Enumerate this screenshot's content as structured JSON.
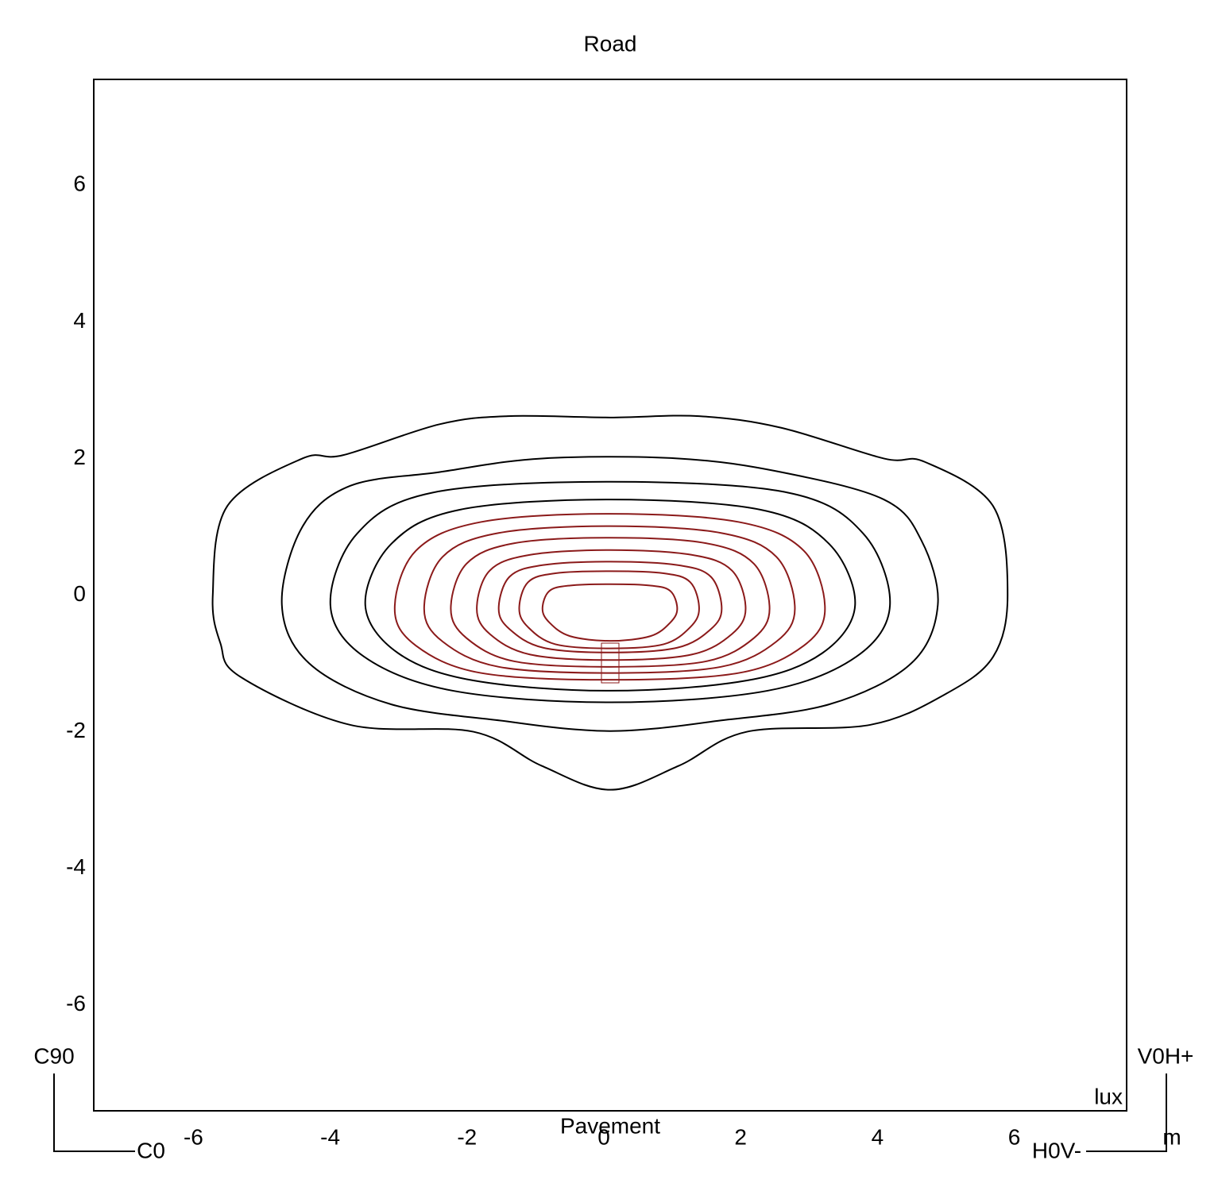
{
  "chart_data": {
    "type": "contour",
    "title": "Road",
    "xlabel": "Pavement",
    "unit_label": "lux",
    "length_unit": "m",
    "annotations": {
      "c90": "C90",
      "c0": "C0",
      "v0h": "V0H+",
      "h0v": "H0V-"
    },
    "xlim": [
      -7.55,
      7.55
    ],
    "ylim": [
      -7.55,
      7.55
    ],
    "xticks": [
      -6,
      -4,
      -2,
      0,
      2,
      4,
      6
    ],
    "yticks": [
      -6,
      -4,
      -2,
      0,
      2,
      4,
      6
    ],
    "grid": false,
    "contours": [
      {
        "color": "#000000",
        "x": [
          -5.81,
          -5.6,
          -4.5,
          -3.9,
          -2.5,
          -1.5,
          0,
          1.3,
          2.5,
          4,
          4.6,
          5.6,
          5.81,
          5.6,
          4.9,
          3.8,
          2.0,
          1.0,
          0,
          -1,
          -2.0,
          -3.8,
          -5.4,
          -5.7
        ],
        "y": [
          0,
          1.3,
          2.0,
          2.05,
          2.5,
          2.62,
          2.6,
          2.62,
          2.45,
          2.0,
          1.95,
          1.3,
          0,
          -0.9,
          -1.45,
          -1.9,
          -2.0,
          -2.5,
          -2.85,
          -2.5,
          -2.0,
          -1.9,
          -1.2,
          -0.7
        ]
      },
      {
        "color": "#000000",
        "x": [
          -4.8,
          -4.5,
          -3.8,
          -2.5,
          -1,
          1,
          2.5,
          4.0,
          4.55,
          4.79,
          4.4,
          3.2,
          1.5,
          0.7,
          0,
          -0.7,
          -1.5,
          -3.2,
          -4.4
        ],
        "y": [
          -0.14,
          1.0,
          1.6,
          1.8,
          2.0,
          2.0,
          1.8,
          1.4,
          0.8,
          -0.14,
          -1.0,
          -1.6,
          -1.85,
          -1.95,
          -1.99,
          -1.95,
          -1.85,
          -1.6,
          -1.0
        ]
      },
      {
        "color": "#000000",
        "x": [
          -4.09,
          -3.7,
          -2.6,
          0,
          2.6,
          3.7,
          4.09,
          3.6,
          2.3,
          0,
          -2.3,
          -3.6
        ],
        "y": [
          -0.15,
          0.9,
          1.5,
          1.66,
          1.5,
          0.9,
          -0.15,
          -0.9,
          -1.4,
          -1.57,
          -1.4,
          -0.9
        ]
      },
      {
        "color": "#000000",
        "x": [
          -3.58,
          -3.2,
          -2.2,
          0,
          2.2,
          3.2,
          3.58,
          3.1,
          2.0,
          0,
          -2.0,
          -3.1
        ],
        "y": [
          -0.15,
          0.75,
          1.25,
          1.4,
          1.25,
          0.75,
          -0.15,
          -0.85,
          -1.25,
          -1.4,
          -1.25,
          -0.85
        ]
      },
      {
        "color": "#8b1a1a",
        "x": [
          -3.15,
          -2.84,
          -1.89,
          0,
          1.88,
          2.83,
          3.14,
          2.83,
          1.88,
          0,
          -1.89,
          -2.84
        ],
        "y": [
          -0.2,
          0.65,
          1.07,
          1.19,
          1.07,
          0.65,
          -0.2,
          -0.74,
          -1.14,
          -1.24,
          -1.14,
          -0.74
        ]
      },
      {
        "color": "#8b1a1a",
        "x": [
          -2.72,
          -2.45,
          -1.63,
          0,
          1.62,
          2.43,
          2.7,
          2.43,
          1.62,
          0,
          -1.63,
          -2.45
        ],
        "y": [
          -0.2,
          0.56,
          0.91,
          1.01,
          0.91,
          0.56,
          -0.2,
          -0.68,
          -1.05,
          -1.14,
          -1.05,
          -0.68
        ]
      },
      {
        "color": "#8b1a1a",
        "x": [
          -2.33,
          -2.1,
          -1.4,
          0,
          1.4,
          2.1,
          2.33,
          2.1,
          1.4,
          0,
          -1.4,
          -2.1
        ],
        "y": [
          -0.2,
          0.46,
          0.76,
          0.84,
          0.76,
          0.46,
          -0.2,
          -0.63,
          -0.97,
          -1.05,
          -0.97,
          -0.63
        ]
      },
      {
        "color": "#8b1a1a",
        "x": [
          -1.95,
          -1.76,
          -1.17,
          0,
          1.19,
          1.78,
          1.98,
          1.78,
          1.19,
          0,
          -1.17,
          -1.76
        ],
        "y": [
          -0.2,
          0.36,
          0.59,
          0.66,
          0.59,
          0.36,
          -0.2,
          -0.57,
          -0.87,
          -0.95,
          -0.87,
          -0.57
        ]
      },
      {
        "color": "#8b1a1a",
        "x": [
          -1.63,
          -1.47,
          -0.98,
          0,
          0.98,
          1.47,
          1.63,
          1.47,
          0.98,
          0,
          -0.98,
          -1.47
        ],
        "y": [
          -0.2,
          0.27,
          0.44,
          0.49,
          0.44,
          0.27,
          -0.2,
          -0.5,
          -0.77,
          -0.84,
          -0.77,
          -0.5
        ]
      },
      {
        "color": "#8b1a1a",
        "x": [
          -1.33,
          -1.2,
          -0.8,
          0,
          0.78,
          1.17,
          1.3,
          1.17,
          0.78,
          0,
          -0.8,
          -1.2
        ],
        "y": [
          -0.2,
          0.19,
          0.32,
          0.35,
          0.32,
          0.19,
          -0.2,
          -0.47,
          -0.72,
          -0.78,
          -0.72,
          -0.47
        ]
      },
      {
        "color": "#8b1a1a",
        "x": [
          -0.99,
          -0.89,
          -0.59,
          0,
          0.59,
          0.88,
          0.98,
          0.88,
          0.59,
          0,
          -0.59,
          -0.89
        ],
        "y": [
          -0.2,
          0.06,
          0.14,
          0.16,
          0.14,
          0.06,
          -0.2,
          -0.4,
          -0.6,
          -0.67,
          -0.6,
          -0.4
        ]
      }
    ]
  }
}
